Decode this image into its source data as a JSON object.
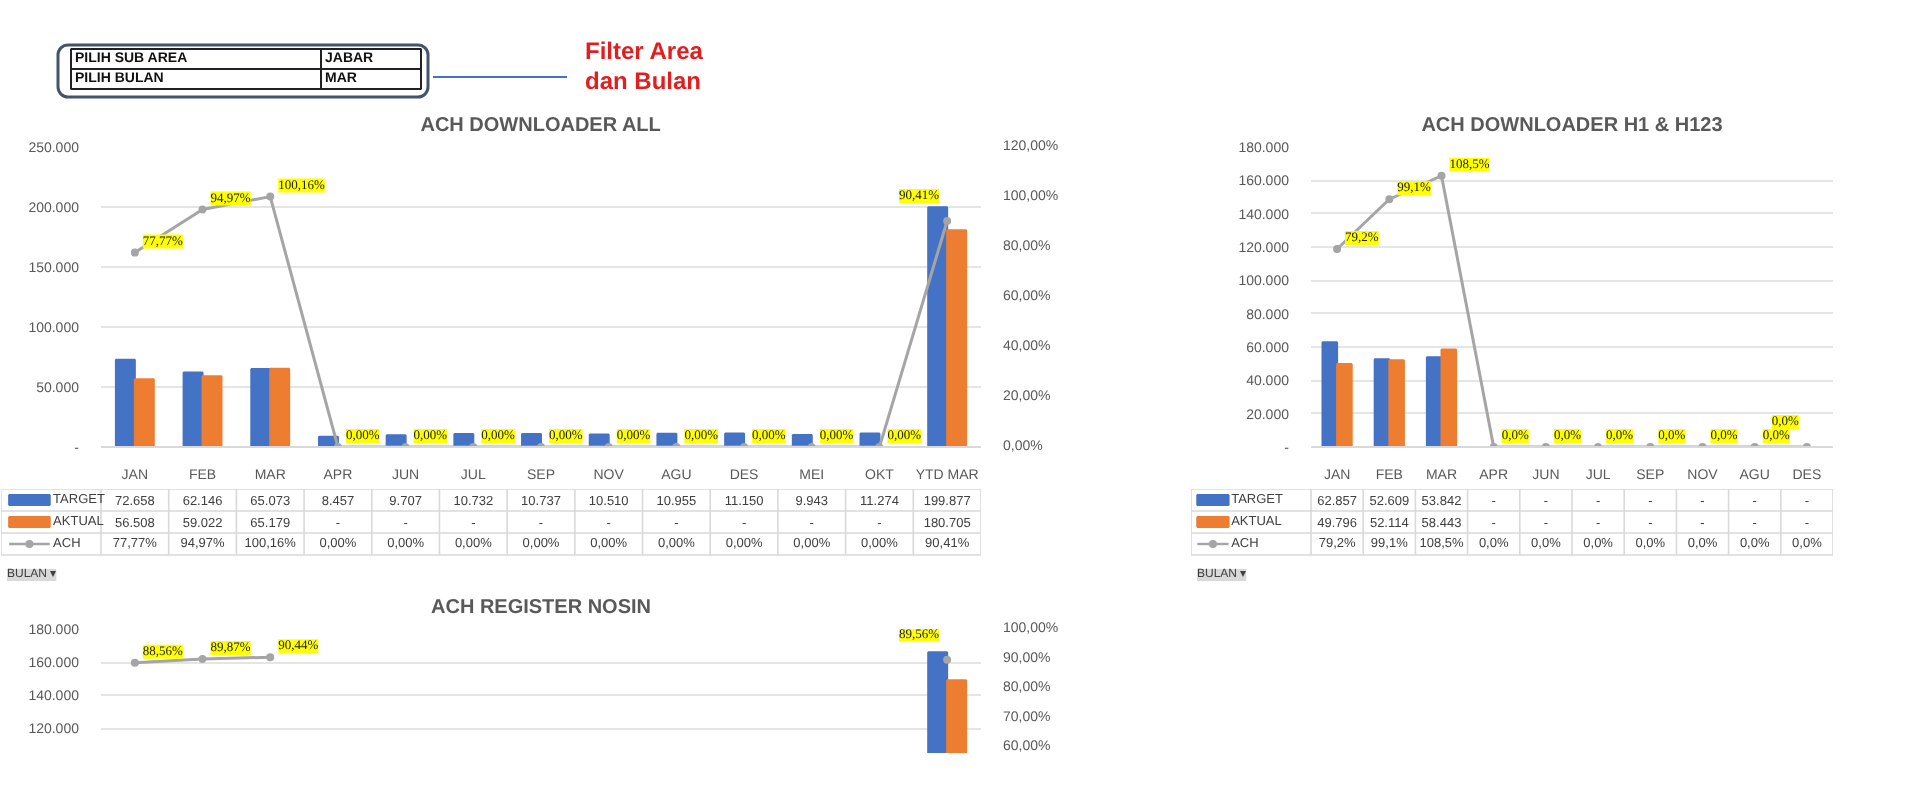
{
  "chart_data": [
    {
      "type": "other",
      "annotations": [
        "PILIH SUB AREA",
        "JABAR",
        "PILIH BULAN",
        "MAR",
        "Filter Area dan Bulan"
      ]
    },
    {
      "type": "bar",
      "title": "ACH DOWNLOADER ALL",
      "categories": [
        "JAN",
        "FEB",
        "MAR",
        "APR",
        "JUN",
        "JUL",
        "SEP",
        "NOV",
        "AGU",
        "DES",
        "MEI",
        "OKT",
        "YTD MAR"
      ],
      "series": [
        {
          "name": "TARGET",
          "color": "#4472c4",
          "values": [
            72658,
            62146,
            65073,
            8457,
            9707,
            10732,
            10737,
            10510,
            10955,
            11150,
            9943,
            11274,
            199877
          ],
          "value_labels": [
            "72.658",
            "62.146",
            "65.073",
            "8.457",
            "9.707",
            "10.732",
            "10.737",
            "10.510",
            "10.955",
            "11.150",
            "9.943",
            "11.274",
            "199.877"
          ]
        },
        {
          "name": "AKTUAL",
          "color": "#ed7d31",
          "values": [
            56508,
            59022,
            65179,
            null,
            null,
            null,
            null,
            null,
            null,
            null,
            null,
            null,
            180705
          ],
          "value_labels": [
            "56.508",
            "59.022",
            "65.179",
            "-",
            "-",
            "-",
            "-",
            "-",
            "-",
            "-",
            "-",
            "-",
            "180.705"
          ]
        },
        {
          "name": "ACH",
          "type": "line",
          "axis": "y2",
          "color": "#a5a5a5",
          "values": [
            77.77,
            94.97,
            100.16,
            0,
            0,
            0,
            0,
            0,
            0,
            0,
            0,
            0,
            90.41
          ],
          "value_labels": [
            "77,77%",
            "94,97%",
            "100,16%",
            "0,00%",
            "0,00%",
            "0,00%",
            "0,00%",
            "0,00%",
            "0,00%",
            "0,00%",
            "0,00%",
            "0,00%",
            "90,41%"
          ]
        }
      ],
      "ylim": [
        0,
        250000
      ],
      "yticks": [
        {
          "value": 0,
          "label": "-"
        },
        {
          "value": 50000,
          "label": "50.000"
        },
        {
          "value": 100000,
          "label": "100.000"
        },
        {
          "value": 150000,
          "label": "150.000"
        },
        {
          "value": 200000,
          "label": "200.000"
        },
        {
          "value": 250000,
          "label": "250.000"
        }
      ],
      "y2lim": [
        0,
        120
      ],
      "y2ticks": [
        {
          "value": 0,
          "label": "0,00%"
        },
        {
          "value": 20,
          "label": "20,00%"
        },
        {
          "value": 40,
          "label": "40,00%"
        },
        {
          "value": 60,
          "label": "60,00%"
        },
        {
          "value": 80,
          "label": "80,00%"
        },
        {
          "value": 100,
          "label": "100,00%"
        },
        {
          "value": 120,
          "label": "120,00%"
        }
      ],
      "grid": "y",
      "legend": "bottom",
      "marker": "circle",
      "annotations": [
        "BULAN ▾"
      ]
    },
    {
      "type": "bar",
      "title": "ACH DOWNLOADER H1 & H123",
      "categories": [
        "JAN",
        "FEB",
        "MAR",
        "APR",
        "JUN",
        "JUL",
        "SEP",
        "NOV",
        "AGU",
        "DES"
      ],
      "series": [
        {
          "name": "TARGET",
          "color": "#4472c4",
          "values": [
            62857,
            52609,
            53842,
            null,
            null,
            null,
            null,
            null,
            null,
            null
          ],
          "value_labels": [
            "62.857",
            "52.609",
            "53.842",
            "-",
            "-",
            "-",
            "-",
            "-",
            "-",
            "-"
          ]
        },
        {
          "name": "AKTUAL",
          "color": "#ed7d31",
          "values": [
            49796,
            52114,
            58443,
            null,
            null,
            null,
            null,
            null,
            null,
            null
          ],
          "value_labels": [
            "49.796",
            "52.114",
            "58.443",
            "-",
            "-",
            "-",
            "-",
            "-",
            "-",
            "-"
          ]
        },
        {
          "name": "ACH",
          "type": "line",
          "axis": "y2",
          "color": "#a5a5a5",
          "values": [
            79.2,
            99.1,
            108.5,
            0,
            0,
            0,
            0,
            0,
            0,
            0
          ],
          "value_labels": [
            "79,2%",
            "99,1%",
            "108,5%",
            "0,0%",
            "0,0%",
            "0,0%",
            "0,0%",
            "0,0%",
            "0,0%",
            "0,0%"
          ]
        }
      ],
      "ylim": [
        0,
        180000
      ],
      "yticks": [
        {
          "value": 0,
          "label": "-"
        },
        {
          "value": 20000,
          "label": "20.000"
        },
        {
          "value": 40000,
          "label": "40.000"
        },
        {
          "value": 60000,
          "label": "60.000"
        },
        {
          "value": 80000,
          "label": "80.000"
        },
        {
          "value": 100000,
          "label": "100.000"
        },
        {
          "value": 120000,
          "label": "120.000"
        },
        {
          "value": 140000,
          "label": "140.000"
        },
        {
          "value": 160000,
          "label": "160.000"
        },
        {
          "value": 180000,
          "label": "180.000"
        }
      ],
      "y2lim": [
        0,
        120
      ],
      "grid": "y",
      "legend": "bottom",
      "marker": "circle",
      "annotations": [
        "BULAN ▾"
      ]
    },
    {
      "type": "bar",
      "title": "ACH REGISTER NOSIN",
      "categories": [
        null,
        null,
        null,
        null,
        null,
        null,
        null,
        null,
        null,
        null,
        null,
        null,
        null
      ],
      "series": [
        {
          "color": "#4472c4",
          "values": [
            null,
            null,
            null,
            null,
            null,
            null,
            null,
            null,
            null,
            null,
            null,
            null,
            166000
          ]
        },
        {
          "color": "#ed7d31",
          "values": [
            null,
            null,
            null,
            null,
            null,
            null,
            null,
            null,
            null,
            null,
            null,
            null,
            149000
          ]
        },
        {
          "type": "line",
          "axis": "y2",
          "color": "#a5a5a5",
          "values": [
            88.56,
            89.87,
            90.44,
            null,
            null,
            null,
            null,
            null,
            null,
            null,
            null,
            null,
            89.56
          ],
          "value_labels": [
            "88,56%",
            "89,87%",
            "90,44%",
            null,
            null,
            null,
            null,
            null,
            null,
            null,
            null,
            null,
            "89,56%"
          ]
        }
      ],
      "ylim": [
        105000,
        180000
      ],
      "yticks": [
        {
          "value": 120000,
          "label": "120.000"
        },
        {
          "value": 140000,
          "label": "140.000"
        },
        {
          "value": 160000,
          "label": "160.000"
        },
        {
          "value": 180000,
          "label": "180.000"
        }
      ],
      "y2lim": [
        58,
        100
      ],
      "y2ticks": [
        {
          "value": 60,
          "label": "60,00%"
        },
        {
          "value": 70,
          "label": "70,00%"
        },
        {
          "value": 80,
          "label": "80,00%"
        },
        {
          "value": 90,
          "label": "90,00%"
        },
        {
          "value": 100,
          "label": "100,00%"
        }
      ],
      "grid": "y",
      "marker": "circle"
    }
  ]
}
